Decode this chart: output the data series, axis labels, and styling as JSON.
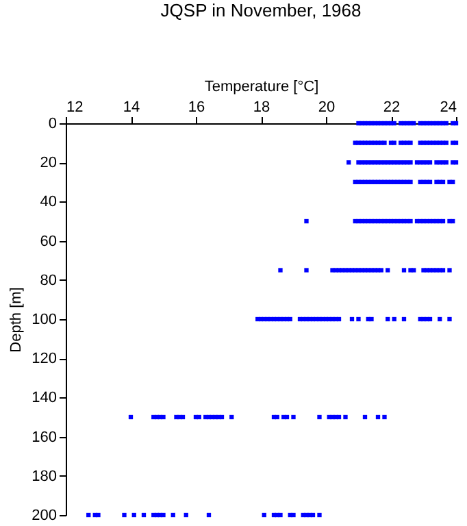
{
  "chart_data": {
    "type": "scatter",
    "title": "JQSP in November, 1968",
    "xlabel": "Temperature [°C]",
    "ylabel": "Depth [m]",
    "xlim": [
      12,
      24
    ],
    "xticks": [
      12,
      14,
      16,
      18,
      20,
      22,
      24
    ],
    "ylim": [
      200,
      0
    ],
    "yticks": [
      0,
      20,
      40,
      60,
      80,
      100,
      120,
      140,
      160,
      180,
      200
    ],
    "grid": false,
    "marker": "square",
    "series": [
      {
        "color": "#0000ff",
        "x": [
          21.0,
          21.1,
          21.2,
          21.3,
          21.4,
          21.5,
          21.6,
          21.7,
          21.8,
          21.9,
          22.0,
          22.1,
          22.3,
          22.4,
          22.5,
          22.6,
          22.7,
          22.9,
          23.0,
          23.1,
          23.2,
          23.3,
          23.4,
          23.5,
          23.6,
          23.7,
          23.9,
          24.0
        ],
        "values": [
          0,
          0,
          0,
          0,
          0,
          0,
          0,
          0,
          0,
          0,
          0,
          0,
          0,
          0,
          0,
          0,
          0,
          0,
          0,
          0,
          0,
          0,
          0,
          0,
          0,
          0,
          0,
          0
        ]
      },
      {
        "color": "#0000ff",
        "x": [
          20.9,
          21.0,
          21.1,
          21.2,
          21.3,
          21.4,
          21.5,
          21.6,
          21.7,
          21.8,
          22.0,
          22.1,
          22.3,
          22.4,
          22.5,
          22.6,
          22.9,
          23.0,
          23.1,
          23.2,
          23.3,
          23.4,
          23.5,
          23.6,
          23.7,
          23.9,
          24.0
        ],
        "values": [
          10,
          10,
          10,
          10,
          10,
          10,
          10,
          10,
          10,
          10,
          10,
          10,
          10,
          10,
          10,
          10,
          10,
          10,
          10,
          10,
          10,
          10,
          10,
          10,
          10,
          10,
          10
        ]
      },
      {
        "color": "#0000ff",
        "x": [
          20.7,
          21.0,
          21.1,
          21.2,
          21.3,
          21.4,
          21.5,
          21.6,
          21.7,
          21.8,
          21.9,
          22.0,
          22.1,
          22.2,
          22.3,
          22.4,
          22.5,
          22.6,
          22.8,
          22.9,
          23.0,
          23.1,
          23.2,
          23.4,
          23.5,
          23.6,
          23.7,
          23.9,
          24.0
        ],
        "values": [
          20,
          20,
          20,
          20,
          20,
          20,
          20,
          20,
          20,
          20,
          20,
          20,
          20,
          20,
          20,
          20,
          20,
          20,
          20,
          20,
          20,
          20,
          20,
          20,
          20,
          20,
          20,
          20,
          20
        ]
      },
      {
        "color": "#0000ff",
        "x": [
          20.9,
          21.0,
          21.1,
          21.2,
          21.3,
          21.4,
          21.5,
          21.6,
          21.7,
          21.8,
          21.9,
          22.0,
          22.1,
          22.2,
          22.3,
          22.4,
          22.5,
          22.6,
          22.9,
          23.0,
          23.1,
          23.2,
          23.4,
          23.5,
          23.6,
          23.8,
          23.9
        ],
        "values": [
          30,
          30,
          30,
          30,
          30,
          30,
          30,
          30,
          30,
          30,
          30,
          30,
          30,
          30,
          30,
          30,
          30,
          30,
          30,
          30,
          30,
          30,
          30,
          30,
          30,
          30,
          30
        ]
      },
      {
        "color": "#0000ff",
        "x": [
          19.4,
          20.9,
          21.0,
          21.1,
          21.2,
          21.3,
          21.4,
          21.5,
          21.6,
          21.7,
          21.8,
          21.9,
          22.0,
          22.1,
          22.2,
          22.3,
          22.4,
          22.5,
          22.6,
          22.8,
          22.9,
          23.0,
          23.1,
          23.2,
          23.3,
          23.4,
          23.5,
          23.6,
          23.8,
          23.9
        ],
        "values": [
          50,
          50,
          50,
          50,
          50,
          50,
          50,
          50,
          50,
          50,
          50,
          50,
          50,
          50,
          50,
          50,
          50,
          50,
          50,
          50,
          50,
          50,
          50,
          50,
          50,
          50,
          50,
          50,
          50,
          50
        ]
      },
      {
        "color": "#0000ff",
        "x": [
          18.6,
          19.4,
          20.2,
          20.3,
          20.4,
          20.5,
          20.6,
          20.7,
          20.8,
          20.9,
          21.0,
          21.1,
          21.2,
          21.3,
          21.4,
          21.5,
          21.6,
          21.7,
          21.9,
          22.4,
          22.6,
          22.7,
          23.0,
          23.1,
          23.2,
          23.3,
          23.4,
          23.5,
          23.6,
          23.8
        ],
        "values": [
          75,
          75,
          75,
          75,
          75,
          75,
          75,
          75,
          75,
          75,
          75,
          75,
          75,
          75,
          75,
          75,
          75,
          75,
          75,
          75,
          75,
          75,
          75,
          75,
          75,
          75,
          75,
          75,
          75,
          75
        ]
      },
      {
        "color": "#0000ff",
        "x": [
          17.9,
          18.0,
          18.1,
          18.2,
          18.3,
          18.4,
          18.5,
          18.6,
          18.7,
          18.8,
          18.9,
          19.2,
          19.3,
          19.4,
          19.5,
          19.6,
          19.7,
          19.8,
          19.9,
          20.0,
          20.1,
          20.2,
          20.3,
          20.4,
          20.8,
          21.0,
          21.3,
          21.4,
          21.9,
          22.1,
          22.4,
          22.9,
          23.0,
          23.1,
          23.2,
          23.5,
          23.8
        ],
        "values": [
          100,
          100,
          100,
          100,
          100,
          100,
          100,
          100,
          100,
          100,
          100,
          100,
          100,
          100,
          100,
          100,
          100,
          100,
          100,
          100,
          100,
          100,
          100,
          100,
          100,
          100,
          100,
          100,
          100,
          100,
          100,
          100,
          100,
          100,
          100,
          100,
          100
        ]
      },
      {
        "color": "#0000ff",
        "x": [
          14.0,
          14.7,
          14.8,
          14.9,
          15.0,
          15.4,
          15.5,
          15.6,
          16.0,
          16.1,
          16.3,
          16.4,
          16.5,
          16.6,
          16.7,
          16.8,
          17.1,
          18.4,
          18.5,
          18.7,
          18.8,
          19.0,
          19.8,
          20.1,
          20.2,
          20.3,
          20.4,
          20.6,
          21.2,
          21.6,
          21.8
        ],
        "values": [
          150,
          150,
          150,
          150,
          150,
          150,
          150,
          150,
          150,
          150,
          150,
          150,
          150,
          150,
          150,
          150,
          150,
          150,
          150,
          150,
          150,
          150,
          150,
          150,
          150,
          150,
          150,
          150,
          150,
          150,
          150
        ]
      },
      {
        "color": "#0000ff",
        "x": [
          12.7,
          12.9,
          13.0,
          13.8,
          14.1,
          14.4,
          14.7,
          14.8,
          14.9,
          15.0,
          15.3,
          15.7,
          16.4,
          18.1,
          18.4,
          18.5,
          18.6,
          18.9,
          19.0,
          19.3,
          19.4,
          19.5,
          19.6,
          19.8
        ],
        "values": [
          200,
          200,
          200,
          200,
          200,
          200,
          200,
          200,
          200,
          200,
          200,
          200,
          200,
          200,
          200,
          200,
          200,
          200,
          200,
          200,
          200,
          200,
          200,
          200
        ]
      }
    ]
  }
}
